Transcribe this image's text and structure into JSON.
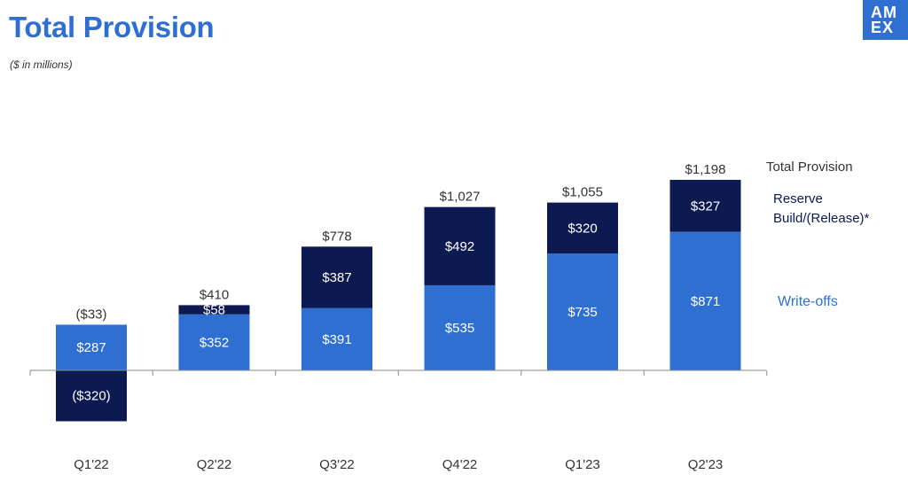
{
  "title": "Total Provision",
  "subtitle": "($ in millions)",
  "logo": {
    "line1": "AM",
    "line2": "EX"
  },
  "colors": {
    "writeoffs": "#2e6fd1",
    "reserve": "#0d1a52",
    "title": "#2e6fd1"
  },
  "chart_data": {
    "type": "bar",
    "stacked": true,
    "categories": [
      "Q1'22",
      "Q2'22",
      "Q3'22",
      "Q4'22",
      "Q1'23",
      "Q2'23"
    ],
    "series": [
      {
        "name": "Write-offs",
        "values": [
          287,
          352,
          391,
          535,
          735,
          871
        ],
        "labels": [
          "$287",
          "$352",
          "$391",
          "$535",
          "$735",
          "$871"
        ]
      },
      {
        "name": "Reserve Build/(Release)*",
        "values": [
          -320,
          58,
          387,
          492,
          320,
          327
        ],
        "labels": [
          "($320)",
          "$58",
          "$387",
          "$492",
          "$320",
          "$327"
        ]
      }
    ],
    "totals": {
      "name": "Total Provision",
      "values": [
        -33,
        410,
        778,
        1027,
        1055,
        1198
      ],
      "labels": [
        "($33)",
        "$410",
        "$778",
        "$1,027",
        "$1,055",
        "$1,198"
      ]
    },
    "legend_position": "right",
    "grid": false
  }
}
